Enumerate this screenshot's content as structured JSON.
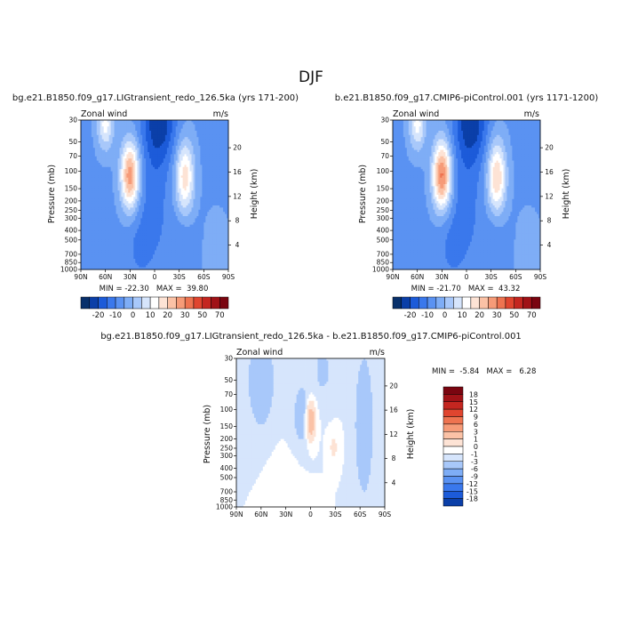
{
  "title": "DJF",
  "colors": {
    "div_blue": [
      "#08306b",
      "#0b3fa8",
      "#1c5bd9",
      "#3a78ec",
      "#5a92f2",
      "#7eadf6",
      "#a8c8fa",
      "#d6e5fc"
    ],
    "div_red": [
      "#fde3d5",
      "#fbc2a6",
      "#f69b78",
      "#ee7350",
      "#e0452f",
      "#c42620",
      "#a01217",
      "#7a0510"
    ],
    "white": "#ffffff"
  },
  "panels": [
    {
      "title": "bg.e21.B1850.f09_g17.LIGtransient_redo_126.5ka (yrs 171-200)",
      "left_label": "Zonal wind",
      "units": "m/s",
      "ylabel": "Pressure (mb)",
      "y2label": "Height (km)",
      "minmax": "MIN = -22.30   MAX =  39.80"
    },
    {
      "title": "b.e21.B1850.f09_g17.CMIP6-piControl.001 (yrs 1171-1200)",
      "left_label": "Zonal wind",
      "units": "m/s",
      "ylabel": "Pressure (mb)",
      "y2label": "Height (km)",
      "minmax": "MIN = -21.70   MAX =  43.32"
    },
    {
      "title": "bg.e21.B1850.f09_g17.LIGtransient_redo_126.5ka - b.e21.B1850.f09_g17.CMIP6-piControl.001",
      "left_label": "Zonal wind",
      "units": "m/s",
      "ylabel": "Pressure (mb)",
      "y2label": "Height (km)",
      "minmax": "MIN =  -5.84   MAX =   6.28"
    }
  ],
  "chart_data": {
    "type": "heatmap",
    "x_tick_labels": [
      "90N",
      "60N",
      "30N",
      "0",
      "30S",
      "60S",
      "90S"
    ],
    "x_values": [
      90,
      60,
      30,
      0,
      -30,
      -60,
      -90
    ],
    "y_tick_labels": [
      "30",
      "50",
      "70",
      "100",
      "150",
      "200",
      "250",
      "300",
      "400",
      "500",
      "700",
      "850",
      "1000"
    ],
    "y_values": [
      30,
      50,
      70,
      100,
      150,
      200,
      250,
      300,
      400,
      500,
      700,
      850,
      1000
    ],
    "y_scale": "log",
    "y2_tick_labels": [
      "20",
      "16",
      "12",
      "8",
      "4"
    ],
    "y2_values": [
      20,
      16,
      12,
      8,
      4
    ],
    "colorbar_main": {
      "orientation": "horizontal",
      "levels": [
        -25,
        -20,
        -15,
        -10,
        -5,
        0,
        5,
        10,
        15,
        20,
        25,
        30,
        40,
        50,
        60,
        70
      ],
      "labels": [
        "-20",
        "-10",
        "0",
        "10",
        "20",
        "30",
        "50",
        "70"
      ]
    },
    "colorbar_diff": {
      "orientation": "vertical",
      "levels": [
        -18,
        -15,
        -12,
        -9,
        -6,
        -3,
        -1,
        0,
        1,
        3,
        6,
        9,
        12,
        15,
        18
      ],
      "labels": [
        "18",
        "15",
        "12",
        "9",
        "6",
        "3",
        "1",
        "0",
        "-1",
        "-3",
        "-6",
        "-9",
        "-12",
        "-15",
        "-18"
      ]
    }
  }
}
